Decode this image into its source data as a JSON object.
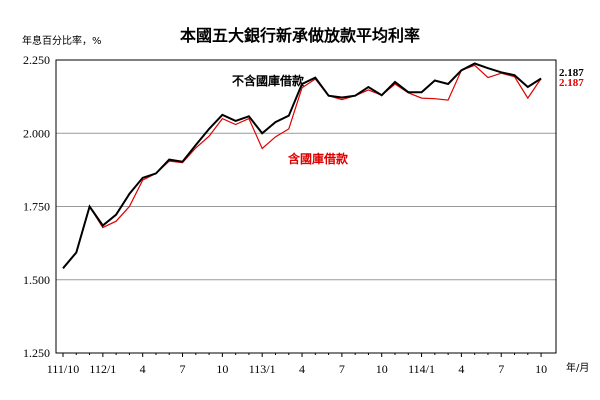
{
  "chart_data": {
    "type": "line",
    "title": "本國五大銀行新承做放款平均利率",
    "ylabel": "年息百分比率，%",
    "xlabel": "年/月",
    "ylim": [
      1.25,
      2.25
    ],
    "yticks": [
      "2.250",
      "2.000",
      "1.750",
      "1.500",
      "1.250"
    ],
    "ytick_values": [
      2.25,
      2.0,
      1.75,
      1.5,
      1.25
    ],
    "xtick_labels": [
      "111/10",
      "112/1",
      "4",
      "7",
      "10",
      "113/1",
      "4",
      "7",
      "10",
      "114/1",
      "4",
      "7",
      "10"
    ],
    "grid": "horizontal",
    "x": [
      "111/10",
      "111/11",
      "111/12",
      "112/1",
      "112/2",
      "112/3",
      "112/4",
      "112/5",
      "112/6",
      "112/7",
      "112/8",
      "112/9",
      "112/10",
      "112/11",
      "112/12",
      "113/1",
      "113/2",
      "113/3",
      "113/4",
      "113/5",
      "113/6",
      "113/7",
      "113/8",
      "113/9",
      "113/10",
      "113/11",
      "113/12",
      "114/1",
      "114/2",
      "114/3",
      "114/4",
      "114/5",
      "114/6",
      "114/7",
      "114/8",
      "114/9",
      "114/10"
    ],
    "series": [
      {
        "name": "不含國庫借款",
        "color": "#000000",
        "end_value": "2.187",
        "values": [
          1.539,
          1.593,
          1.75,
          1.685,
          1.722,
          1.793,
          1.848,
          1.863,
          1.91,
          1.903,
          1.96,
          2.015,
          2.063,
          2.042,
          2.058,
          2.0,
          2.038,
          2.06,
          2.168,
          2.19,
          2.128,
          2.122,
          2.128,
          2.158,
          2.13,
          2.175,
          2.14,
          2.14,
          2.18,
          2.168,
          2.215,
          2.238,
          2.222,
          2.208,
          2.198,
          2.158,
          2.187
        ]
      },
      {
        "name": "含國庫借款",
        "color": "#e00000",
        "end_value": "2.187",
        "values": [
          1.539,
          1.593,
          1.75,
          1.678,
          1.7,
          1.75,
          1.84,
          1.863,
          1.905,
          1.9,
          1.95,
          1.99,
          2.05,
          2.03,
          2.05,
          1.948,
          1.988,
          2.015,
          2.155,
          2.185,
          2.128,
          2.115,
          2.128,
          2.148,
          2.13,
          2.168,
          2.138,
          2.12,
          2.118,
          2.113,
          2.215,
          2.232,
          2.19,
          2.205,
          2.193,
          2.12,
          2.187
        ]
      }
    ],
    "annotations": [
      {
        "text": "不含國庫借款",
        "series": 0
      },
      {
        "text": "含國庫借款",
        "series": 1
      }
    ]
  }
}
